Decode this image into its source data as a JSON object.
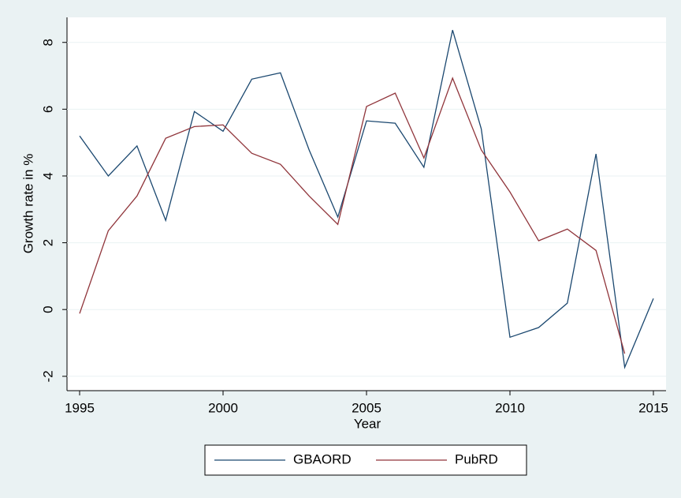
{
  "chart_data": {
    "type": "line",
    "x": [
      1995,
      1996,
      1997,
      1998,
      1999,
      2000,
      2001,
      2002,
      2003,
      2004,
      2005,
      2006,
      2007,
      2008,
      2009,
      2010,
      2011,
      2012,
      2013,
      2014,
      2015
    ],
    "series": [
      {
        "name": "GBAORD",
        "color": "#1a476f",
        "values": [
          5.2,
          4.0,
          4.9,
          2.67,
          5.93,
          5.34,
          6.9,
          7.09,
          4.78,
          2.77,
          5.65,
          5.58,
          4.26,
          8.37,
          5.41,
          -0.83,
          -0.54,
          0.19,
          4.66,
          -1.73,
          0.33
        ]
      },
      {
        "name": "PubRD",
        "color": "#90353b",
        "values": [
          -0.12,
          2.36,
          3.4,
          5.13,
          5.48,
          5.53,
          4.68,
          4.35,
          3.4,
          2.55,
          6.08,
          6.48,
          4.54,
          6.93,
          4.78,
          3.52,
          2.06,
          2.41,
          1.77,
          -1.32,
          null
        ]
      }
    ],
    "xlabel": "Year",
    "ylabel": "Growth rate in %",
    "xlim": [
      1994.56,
      2015.44
    ],
    "ylim": [
      -2.43,
      8.75
    ],
    "xticks": [
      1995,
      2000,
      2005,
      2010,
      2015
    ],
    "yticks": [
      -2,
      0,
      2,
      4,
      6,
      8
    ],
    "grid": true,
    "legend": "bottom"
  }
}
